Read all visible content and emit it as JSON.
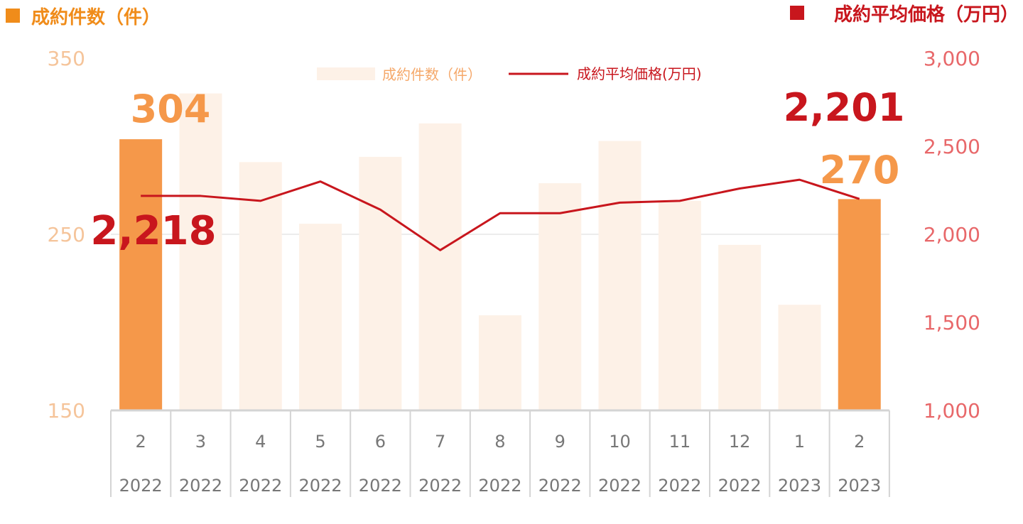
{
  "colors": {
    "bar_highlight": "#f5984a",
    "bar_faded": "#fdf1e7",
    "line": "#c8161d",
    "left_title": "#f08c1a",
    "right_title": "#c8161d",
    "left_ticks": "#f5c49a",
    "right_ticks": "#e8686a",
    "grid": "#e6e6e6",
    "axis": "#d4d4d4",
    "category_text": "#777777"
  },
  "chart_data": {
    "type": "bar",
    "left_axis_title": "成約件数（件）",
    "right_axis_title": "成約平均価格（万円）",
    "legend": {
      "bar_label": "成約件数（件）",
      "line_label": "成約平均価格(万円)"
    },
    "categories": [
      {
        "month": "2",
        "year": "2022"
      },
      {
        "month": "3",
        "year": "2022"
      },
      {
        "month": "4",
        "year": "2022"
      },
      {
        "month": "5",
        "year": "2022"
      },
      {
        "month": "6",
        "year": "2022"
      },
      {
        "month": "7",
        "year": "2022"
      },
      {
        "month": "8",
        "year": "2022"
      },
      {
        "month": "9",
        "year": "2022"
      },
      {
        "month": "10",
        "year": "2022"
      },
      {
        "month": "11",
        "year": "2022"
      },
      {
        "month": "12",
        "year": "2022"
      },
      {
        "month": "1",
        "year": "2023"
      },
      {
        "month": "2",
        "year": "2023"
      }
    ],
    "series": [
      {
        "type": "bar",
        "axis": "left",
        "values": [
          304,
          330,
          291,
          256,
          294,
          313,
          204,
          279,
          303,
          269,
          244,
          210,
          270
        ],
        "highlight": [
          0,
          12
        ]
      },
      {
        "type": "line",
        "axis": "right",
        "values": [
          2218,
          2218,
          2190,
          2300,
          2140,
          1910,
          2120,
          2120,
          2180,
          2190,
          2260,
          2310,
          2201
        ]
      }
    ],
    "left_axis": {
      "min": 150,
      "max": 350,
      "ticks": [
        "150",
        "250",
        "350"
      ],
      "tick_values": [
        150,
        250,
        350
      ]
    },
    "right_axis": {
      "min": 1000,
      "max": 3000,
      "ticks": [
        "1,000",
        "1,500",
        "2,000",
        "2,500",
        "3,000"
      ],
      "tick_values": [
        1000,
        1500,
        2000,
        2500,
        3000
      ]
    },
    "gridlines": [
      250
    ],
    "callouts": {
      "first_bar": "304",
      "first_line": "2,218",
      "last_bar": "270",
      "last_line": "2,201"
    }
  }
}
